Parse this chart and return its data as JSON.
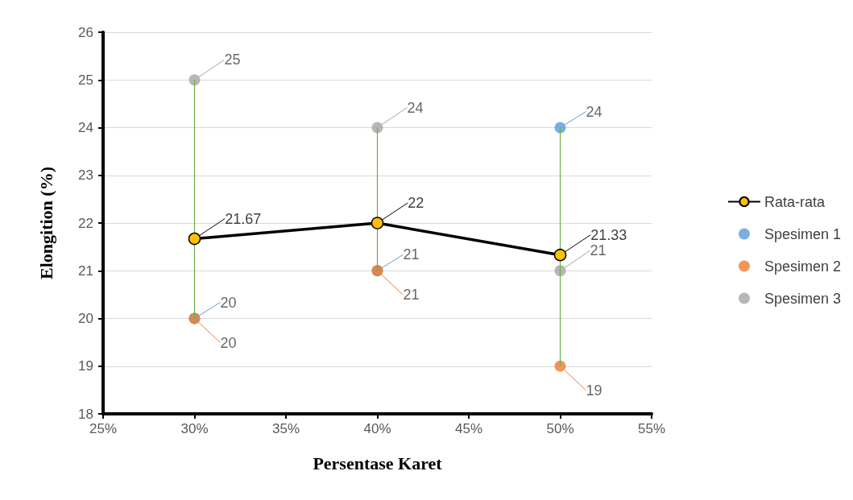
{
  "chart_data": {
    "type": "scatter",
    "xlabel": "Persentase Karet",
    "ylabel": "Elongition (%)",
    "x": [
      30,
      40,
      50
    ],
    "series": [
      {
        "name": "Rata-rata",
        "type": "line",
        "color": "#000000",
        "colors": [
          "#ffc000",
          "#ffc000",
          "#ffc000"
        ],
        "values": [
          21.67,
          22,
          21.33
        ],
        "errors": [
          [
            20,
            25
          ],
          [
            21,
            24
          ],
          [
            19,
            24
          ]
        ]
      },
      {
        "name": "Spesimen 1",
        "color": "#5b9bd5",
        "values": [
          20,
          21,
          24
        ]
      },
      {
        "name": "Spesimen 2",
        "color": "#ed7d31",
        "values": [
          20,
          21,
          19
        ]
      },
      {
        "name": "Spesimen 3",
        "color": "#a5a5a5",
        "values": [
          25,
          24,
          21
        ]
      }
    ],
    "xlim": [
      25,
      55
    ],
    "xticks": [
      {
        "value": 25,
        "label": "25%"
      },
      {
        "value": 30,
        "label": "30%"
      },
      {
        "value": 35,
        "label": "35%"
      },
      {
        "value": 40,
        "label": "40%"
      },
      {
        "value": 45,
        "label": "45%"
      },
      {
        "value": 50,
        "label": "50%"
      },
      {
        "value": 55,
        "label": "55%"
      }
    ],
    "ylim": [
      18,
      26
    ],
    "yticks": [
      18,
      19,
      20,
      21,
      22,
      23,
      24,
      25,
      26
    ],
    "grid": "y",
    "legend": "right",
    "marker": "circle",
    "data_labels": true
  }
}
